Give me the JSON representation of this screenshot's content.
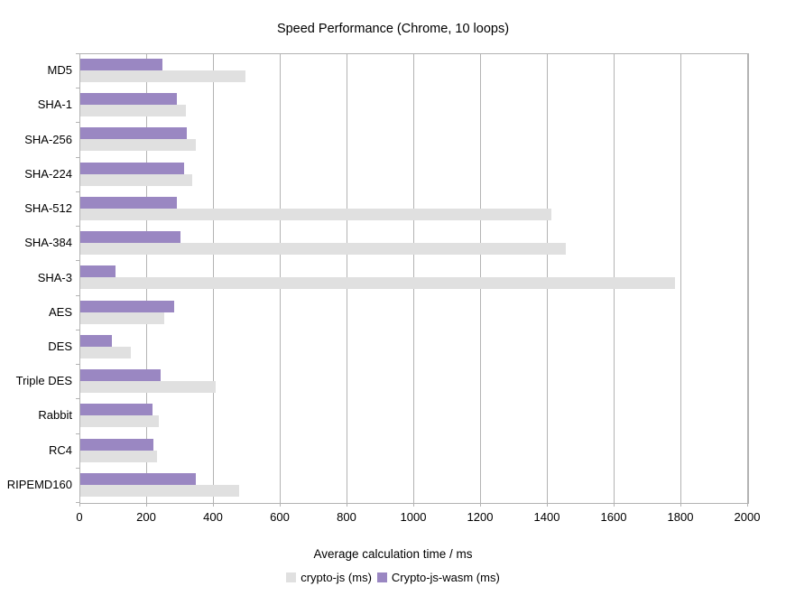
{
  "title": "Speed Performance (Chrome, 10 loops)",
  "colors": {
    "background": "#ffffff",
    "grid": "#b3b3b3",
    "text": "#000000",
    "crypto_js_gray": "#e0e0e0",
    "wasm_purple": "#9a87c2"
  },
  "chart_data": {
    "type": "bar",
    "orientation": "horizontal",
    "title": "Speed Performance (Chrome, 10 loops)",
    "xlabel": "Average calculation time / ms",
    "ylabel": "",
    "xlim": [
      0,
      2000
    ],
    "x_tick_step": 200,
    "x_tick_labels": [
      "0",
      "200",
      "400",
      "600",
      "800",
      "1000",
      "1200",
      "1400",
      "1600",
      "1800",
      "2000"
    ],
    "grid": true,
    "legend_position": "bottom",
    "categories": [
      "MD5",
      "SHA-1",
      "SHA-256",
      "SHA-224",
      "SHA-512",
      "SHA-384",
      "SHA-3",
      "AES",
      "DES",
      "Triple DES",
      "Rabbit",
      "RC4",
      "RIPEMD160"
    ],
    "series": [
      {
        "name": "crypto-js (ms)",
        "color": "#e0e0e0",
        "values": [
          495,
          315,
          345,
          335,
          1410,
          1455,
          1780,
          250,
          150,
          405,
          235,
          230,
          475
        ]
      },
      {
        "name": "Crypto-js-wasm (ms)",
        "color": "#9a87c2",
        "values": [
          245,
          290,
          320,
          310,
          290,
          300,
          105,
          280,
          95,
          240,
          215,
          220,
          345
        ]
      }
    ],
    "bar_render_order_in_group": [
      "Crypto-js-wasm (ms)",
      "crypto-js (ms)"
    ]
  }
}
